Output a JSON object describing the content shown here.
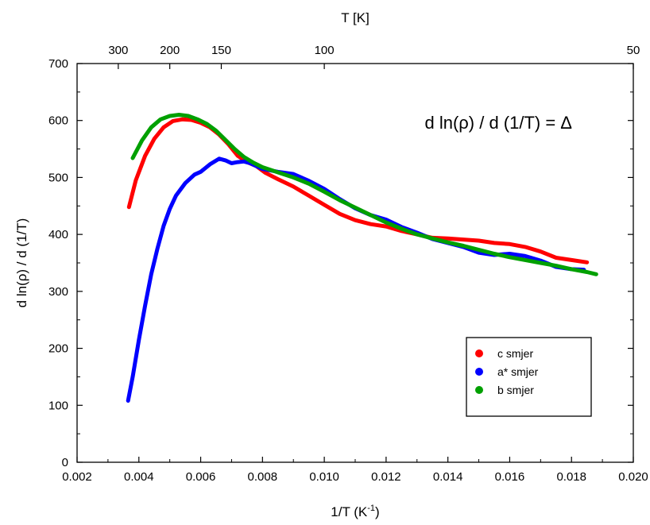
{
  "chart_data": {
    "type": "line",
    "title": "",
    "annotation": "d ln(ρ) / d (1/T) = Δ",
    "xlabel": {
      "base": "1/T  (K",
      "sup": "-1",
      "end": ")"
    },
    "ylabel": "d ln(ρ) / d (1/T)",
    "top_xlabel": "T [K]",
    "xlim": [
      0.002,
      0.02
    ],
    "ylim": [
      0,
      700
    ],
    "grid": false,
    "legend_position": "bottom-right",
    "x_ticks": [
      {
        "value": 0.002,
        "label": "0.002"
      },
      {
        "value": 0.004,
        "label": "0.004"
      },
      {
        "value": 0.006,
        "label": "0.006"
      },
      {
        "value": 0.008,
        "label": "0.008"
      },
      {
        "value": 0.01,
        "label": "0.010"
      },
      {
        "value": 0.012,
        "label": "0.012"
      },
      {
        "value": 0.014,
        "label": "0.014"
      },
      {
        "value": 0.016,
        "label": "0.016"
      },
      {
        "value": 0.018,
        "label": "0.018"
      },
      {
        "value": 0.02,
        "label": "0.020"
      }
    ],
    "y_ticks": [
      {
        "value": 0,
        "label": "0"
      },
      {
        "value": 100,
        "label": "100"
      },
      {
        "value": 200,
        "label": "200"
      },
      {
        "value": 300,
        "label": "300"
      },
      {
        "value": 400,
        "label": "400"
      },
      {
        "value": 500,
        "label": "500"
      },
      {
        "value": 600,
        "label": "600"
      },
      {
        "value": 700,
        "label": "700"
      }
    ],
    "top_ticks": [
      {
        "T": 300,
        "label": "300"
      },
      {
        "T": 200,
        "label": "200"
      },
      {
        "T": 150,
        "label": "150"
      },
      {
        "T": 100,
        "label": "100"
      },
      {
        "T": 50,
        "label": "50"
      }
    ],
    "series": [
      {
        "name": "c  smjer",
        "color": "#ff0000",
        "x": [
          0.00368,
          0.0039,
          0.0042,
          0.0045,
          0.0048,
          0.0051,
          0.0054,
          0.0057,
          0.006,
          0.0063,
          0.0066,
          0.0069,
          0.0072,
          0.0075,
          0.0078,
          0.0081,
          0.0085,
          0.009,
          0.0095,
          0.01,
          0.0105,
          0.011,
          0.0115,
          0.012,
          0.0125,
          0.013,
          0.0135,
          0.014,
          0.0145,
          0.015,
          0.0155,
          0.016,
          0.0165,
          0.017,
          0.0175,
          0.018,
          0.0185
        ],
        "y": [
          448,
          495,
          538,
          568,
          588,
          599,
          602,
          601,
          596,
          588,
          575,
          558,
          538,
          527,
          520,
          508,
          497,
          484,
          468,
          452,
          436,
          425,
          418,
          414,
          406,
          400,
          394,
          393,
          391,
          389,
          385,
          383,
          378,
          370,
          359,
          355,
          351
        ]
      },
      {
        "name": "a* smjer",
        "color": "#0000ff",
        "x": [
          0.00365,
          0.0038,
          0.004,
          0.0042,
          0.0044,
          0.0046,
          0.0048,
          0.005,
          0.0052,
          0.0055,
          0.0058,
          0.006,
          0.0063,
          0.0066,
          0.0068,
          0.007,
          0.0072,
          0.0074,
          0.0076,
          0.0078,
          0.008,
          0.0085,
          0.009,
          0.0095,
          0.01,
          0.0105,
          0.011,
          0.0115,
          0.012,
          0.0125,
          0.013,
          0.0135,
          0.014,
          0.0145,
          0.015,
          0.0155,
          0.016,
          0.0165,
          0.017,
          0.0175,
          0.018,
          0.0184
        ],
        "y": [
          108,
          150,
          215,
          275,
          330,
          375,
          415,
          445,
          468,
          490,
          505,
          510,
          523,
          533,
          530,
          525,
          527,
          528,
          525,
          520,
          515,
          510,
          506,
          494,
          480,
          462,
          446,
          434,
          426,
          413,
          403,
          392,
          385,
          378,
          368,
          364,
          366,
          362,
          354,
          343,
          339,
          338
        ]
      },
      {
        "name": "b  smjer",
        "color": "#00a000",
        "x": [
          0.0038,
          0.0041,
          0.0044,
          0.0047,
          0.005,
          0.0053,
          0.0056,
          0.0059,
          0.0062,
          0.0065,
          0.0068,
          0.0071,
          0.0074,
          0.0077,
          0.008,
          0.0085,
          0.009,
          0.0095,
          0.01,
          0.0105,
          0.011,
          0.0115,
          0.012,
          0.0125,
          0.013,
          0.0135,
          0.014,
          0.0145,
          0.015,
          0.0155,
          0.016,
          0.0165,
          0.017,
          0.0175,
          0.018,
          0.0185,
          0.0188
        ],
        "y": [
          534,
          565,
          588,
          602,
          608,
          610,
          608,
          602,
          594,
          582,
          566,
          550,
          536,
          526,
          518,
          509,
          500,
          489,
          475,
          460,
          447,
          434,
          421,
          410,
          400,
          393,
          386,
          380,
          373,
          366,
          360,
          355,
          350,
          345,
          339,
          334,
          330
        ]
      }
    ]
  }
}
